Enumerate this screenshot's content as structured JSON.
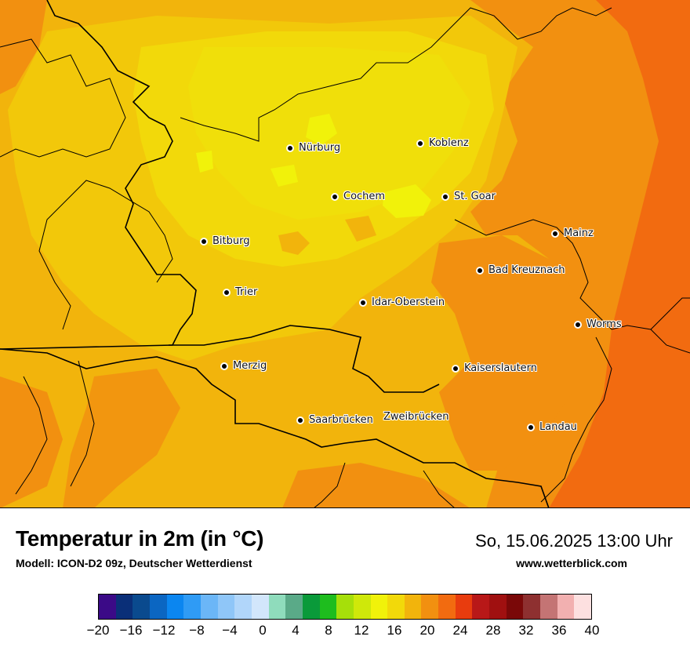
{
  "title": "Temperatur in 2m (in °C)",
  "model": "Modell: ICON-D2 09z, Deutscher Wetterdienst",
  "datetime": "So, 15.06.2025 13:00 Uhr",
  "website": "www.wetterblick.com",
  "cities": [
    {
      "name": "Nürburg"
    },
    {
      "name": "Koblenz"
    },
    {
      "name": "Cochem"
    },
    {
      "name": "St. Goar"
    },
    {
      "name": "Bitburg"
    },
    {
      "name": "Mainz"
    },
    {
      "name": "Bad Kreuznach"
    },
    {
      "name": "Trier"
    },
    {
      "name": "Idar-Oberstein"
    },
    {
      "name": "Worms"
    },
    {
      "name": "Merzig"
    },
    {
      "name": "Kaiserslautern"
    },
    {
      "name": "Saarbrücken"
    },
    {
      "name": "Zweibrücken"
    },
    {
      "name": "Landau"
    }
  ],
  "colorbar": {
    "colors": [
      "#3b0a87",
      "#0a2f78",
      "#0a4a8e",
      "#0b66c2",
      "#0b86f0",
      "#2f9bf5",
      "#6bb6f7",
      "#8fc6f8",
      "#b1d6fa",
      "#d2e6fb",
      "#8fdcbc",
      "#5aaa88",
      "#0a9a3a",
      "#1ebd1e",
      "#a6df0a",
      "#cfe80a",
      "#f1f20a",
      "#f2d90a",
      "#f2b40c",
      "#f29010",
      "#f26b10",
      "#e83c0e",
      "#b81818",
      "#a01010",
      "#7a0808",
      "#8e3030",
      "#c47474",
      "#f2b0b0",
      "#fde0e0"
    ],
    "tick_labels": [
      "−20",
      "−16",
      "−12",
      "−8",
      "−4",
      "0",
      "4",
      "8",
      "12",
      "16",
      "20",
      "24",
      "28",
      "32",
      "36",
      "40"
    ],
    "min": -20,
    "max": 40
  }
}
